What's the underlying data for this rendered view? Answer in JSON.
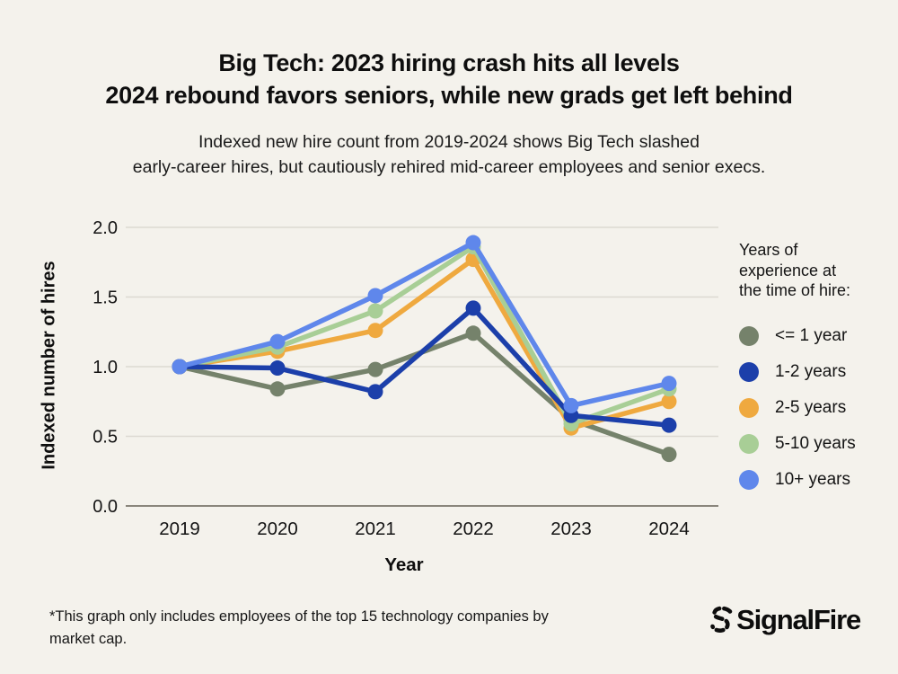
{
  "chart_data": {
    "type": "line",
    "title": "Big Tech: 2023 hiring crash hits all levels\n2024 rebound favors seniors, while new grads get left behind",
    "subtitle": "Indexed new hire count from 2019-2024 shows Big Tech slashed\nearly-career hires, but cautiously rehired mid-career employees and senior execs.",
    "x": [
      2019,
      2020,
      2021,
      2022,
      2023,
      2024
    ],
    "series": [
      {
        "name": "<= 1 year",
        "color": "#75826B",
        "values": [
          1.0,
          0.84,
          0.98,
          1.24,
          0.62,
          0.37
        ]
      },
      {
        "name": "2-5 years",
        "color": "#EFA93F",
        "values": [
          1.0,
          1.11,
          1.26,
          1.77,
          0.56,
          0.75
        ]
      },
      {
        "name": "5-10 years",
        "color": "#A8CE96",
        "values": [
          1.0,
          1.14,
          1.4,
          1.86,
          0.59,
          0.84
        ]
      },
      {
        "name": "1-2 years",
        "color": "#1C3FAA",
        "values": [
          1.0,
          0.99,
          0.82,
          1.42,
          0.65,
          0.58
        ]
      },
      {
        "name": "10+ years",
        "color": "#5F87EB",
        "values": [
          1.0,
          1.18,
          1.51,
          1.89,
          0.72,
          0.88
        ]
      }
    ],
    "legend_order": [
      "<= 1 year",
      "1-2 years",
      "2-5 years",
      "5-10 years",
      "10+ years"
    ],
    "legend_title": "Years of\nexperience at\nthe time of hire:",
    "legend_position": "right",
    "xlabel": "Year",
    "ylabel": "Indexed number of hires",
    "ylim": [
      0.0,
      2.0
    ],
    "yticks": [
      0.0,
      0.5,
      1.0,
      1.5,
      2.0
    ],
    "grid": true
  },
  "footnote": "*This graph only includes employees of the top 15 technology companies by\nmarket cap.",
  "brand": {
    "name": "SignalFire"
  },
  "colors": {
    "background": "#f4f2ec",
    "text": "#0e0e0e",
    "gridline": "#dcd9d1",
    "axis_line": "#8a867c"
  }
}
